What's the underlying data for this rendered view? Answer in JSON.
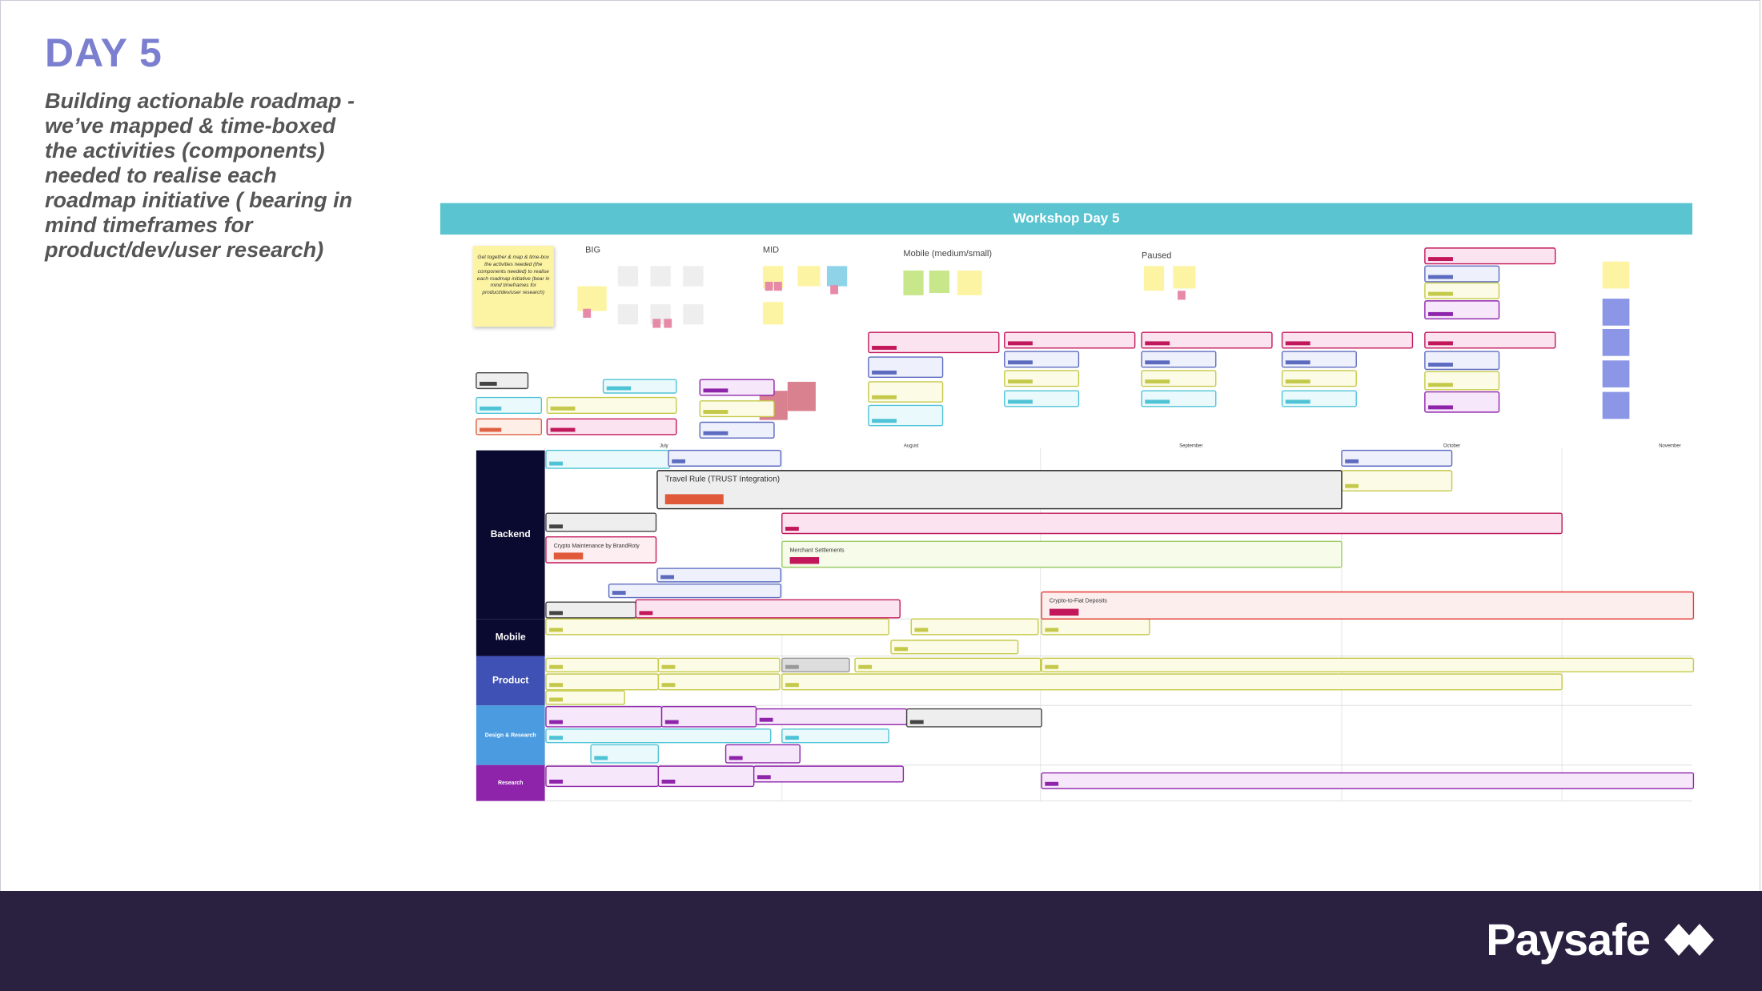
{
  "header": {
    "title": "DAY 5",
    "subtitle": "Building actionable roadmap - we’ve mapped & time-boxed the activities (components) needed to realise each roadmap initiative ( bearing in mind timeframes for product/dev/user research)"
  },
  "board": {
    "title": "Workshop Day 5",
    "sticky_note": "Get together & map & time-box the activities needed (the components needed) to realise each roadmap initiative (bear in mind timeframes for product/dev/user research)",
    "groups": [
      "BIG",
      "MID",
      "Mobile (medium/small)",
      "Paused"
    ],
    "months": [
      "July",
      "August",
      "September",
      "October",
      "November"
    ],
    "rows": [
      "Backend",
      "Mobile",
      "Product",
      "Design & Research",
      "Research"
    ],
    "bars": [
      "Travel Rule (TRUST Integration)",
      "Crypto Maintenance by BrandRoty",
      "Merchant Settlements",
      "Crypto-to-Fiat Deposits"
    ]
  },
  "footer": {
    "logo": "Paysafe"
  }
}
